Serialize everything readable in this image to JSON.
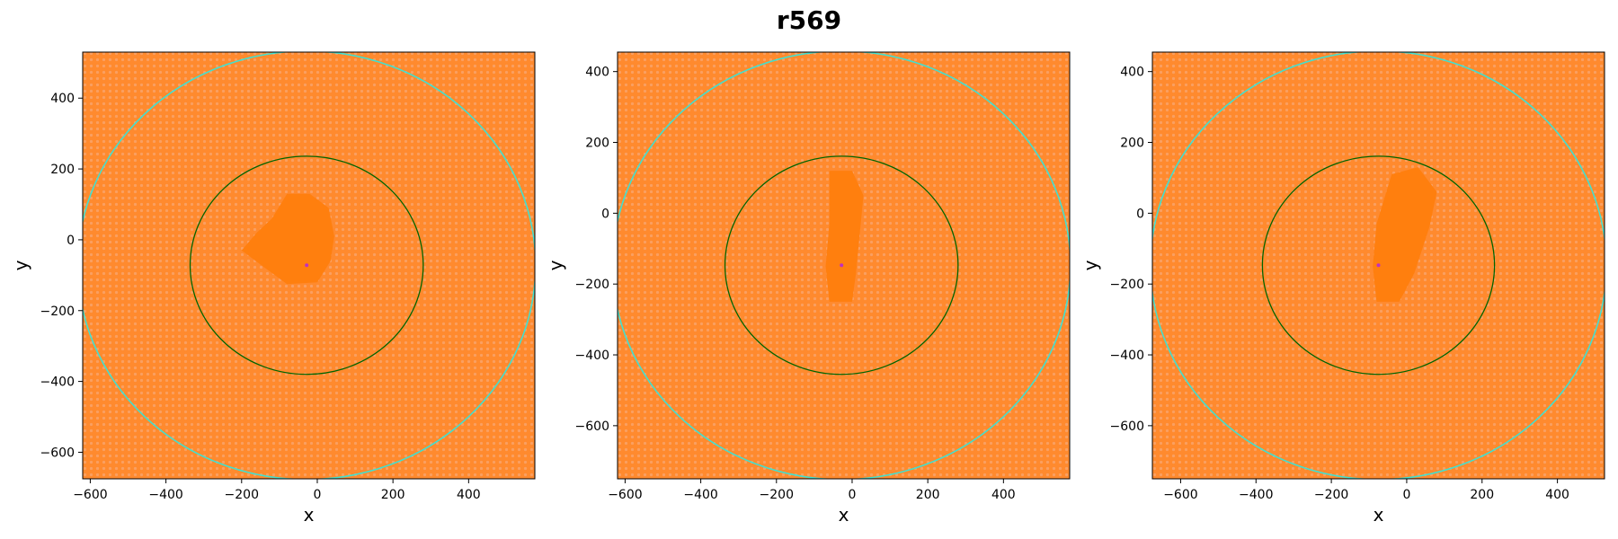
{
  "figure_title": "r569",
  "colors": {
    "background_points": "#ff7f0e",
    "field_fill": "#ff8a2e",
    "light_texture": "#f6b08a",
    "inner_circle": "#006400",
    "outer_circle": "#40e0d0",
    "center_marker": "#c030c0"
  },
  "chart_data": [
    {
      "type": "scatter",
      "xlabel": "x",
      "ylabel": "y",
      "xlim": [
        -620,
        575
      ],
      "ylim": [
        -675,
        530
      ],
      "xticks": [
        -600,
        -400,
        -200,
        0,
        200,
        400
      ],
      "yticks": [
        -600,
        -400,
        -200,
        0,
        200,
        400
      ],
      "center": [
        -28,
        -72
      ],
      "inner_circle": {
        "center": [
          -28,
          -72
        ],
        "radius": 308
      },
      "outer_circle": {
        "center": [
          -28,
          -72
        ],
        "radius": 605
      },
      "dense_region": [
        [
          -80,
          130
        ],
        [
          -20,
          130
        ],
        [
          30,
          90
        ],
        [
          45,
          10
        ],
        [
          35,
          -60
        ],
        [
          0,
          -120
        ],
        [
          -80,
          -125
        ],
        [
          -150,
          -70
        ],
        [
          -200,
          -30
        ],
        [
          -160,
          20
        ],
        [
          -120,
          60
        ]
      ]
    },
    {
      "type": "scatter",
      "xlabel": "x",
      "ylabel": "y",
      "xlim": [
        -620,
        575
      ],
      "ylim": [
        -750,
        455
      ],
      "xticks": [
        -600,
        -400,
        -200,
        0,
        200,
        400
      ],
      "yticks": [
        -600,
        -400,
        -200,
        0,
        200,
        400
      ],
      "center": [
        -28,
        -147
      ],
      "inner_circle": {
        "center": [
          -28,
          -147
        ],
        "radius": 308
      },
      "outer_circle": {
        "center": [
          -28,
          -147
        ],
        "radius": 605
      },
      "dense_region": [
        [
          -60,
          120
        ],
        [
          0,
          120
        ],
        [
          30,
          50
        ],
        [
          20,
          -60
        ],
        [
          10,
          -170
        ],
        [
          0,
          -250
        ],
        [
          -60,
          -250
        ],
        [
          -70,
          -150
        ],
        [
          -60,
          -30
        ]
      ]
    },
    {
      "type": "scatter",
      "xlabel": "x",
      "ylabel": "y",
      "xlim": [
        -675,
        525
      ],
      "ylim": [
        -750,
        455
      ],
      "xticks": [
        -600,
        -400,
        -200,
        0,
        200,
        400
      ],
      "yticks": [
        -600,
        -400,
        -200,
        0,
        200,
        400
      ],
      "center": [
        -75,
        -147
      ],
      "inner_circle": {
        "center": [
          -75,
          -147
        ],
        "radius": 308
      },
      "outer_circle": {
        "center": [
          -75,
          -147
        ],
        "radius": 605
      },
      "dense_region": [
        [
          -40,
          110
        ],
        [
          30,
          130
        ],
        [
          80,
          60
        ],
        [
          60,
          -40
        ],
        [
          20,
          -170
        ],
        [
          -20,
          -250
        ],
        [
          -80,
          -250
        ],
        [
          -90,
          -150
        ],
        [
          -80,
          -30
        ]
      ]
    }
  ]
}
